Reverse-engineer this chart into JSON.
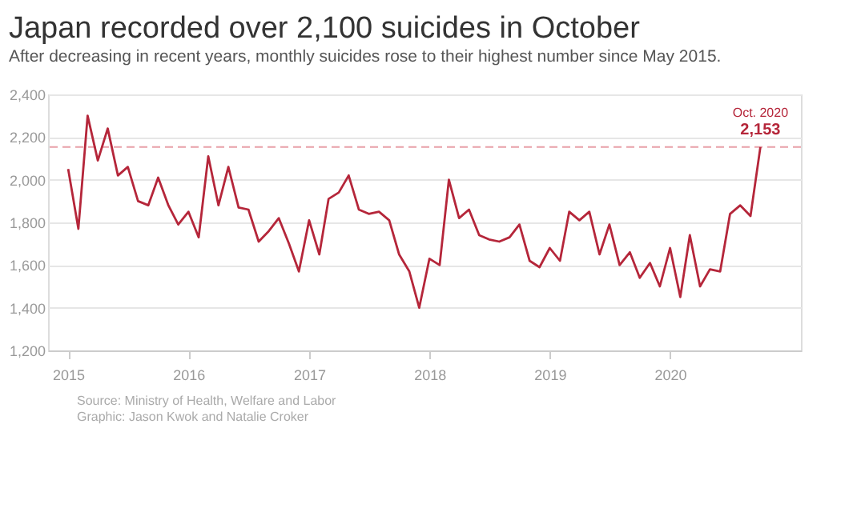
{
  "chart_data": {
    "type": "line",
    "title": "Japan recorded over 2,100 suicides in October",
    "subtitle": "After decreasing in recent years, monthly suicides rose to their highest number since May 2015.",
    "x": [
      "2015-01",
      "2015-02",
      "2015-03",
      "2015-04",
      "2015-05",
      "2015-06",
      "2015-07",
      "2015-08",
      "2015-09",
      "2015-10",
      "2015-11",
      "2015-12",
      "2016-01",
      "2016-02",
      "2016-03",
      "2016-04",
      "2016-05",
      "2016-06",
      "2016-07",
      "2016-08",
      "2016-09",
      "2016-10",
      "2016-11",
      "2016-12",
      "2017-01",
      "2017-02",
      "2017-03",
      "2017-04",
      "2017-05",
      "2017-06",
      "2017-07",
      "2017-08",
      "2017-09",
      "2017-10",
      "2017-11",
      "2017-12",
      "2018-01",
      "2018-02",
      "2018-03",
      "2018-04",
      "2018-05",
      "2018-06",
      "2018-07",
      "2018-08",
      "2018-09",
      "2018-10",
      "2018-11",
      "2018-12",
      "2019-01",
      "2019-02",
      "2019-03",
      "2019-04",
      "2019-05",
      "2019-06",
      "2019-07",
      "2019-08",
      "2019-09",
      "2019-10",
      "2019-11",
      "2019-12",
      "2020-01",
      "2020-02",
      "2020-03",
      "2020-04",
      "2020-05",
      "2020-06",
      "2020-07",
      "2020-08",
      "2020-09",
      "2020-10"
    ],
    "series": [
      {
        "color": "#b5263a",
        "values": [
          2050,
          1770,
          2300,
          2090,
          2240,
          2020,
          2060,
          1900,
          1880,
          2010,
          1880,
          1790,
          1850,
          1730,
          2110,
          1880,
          2060,
          1870,
          1860,
          1710,
          1760,
          1820,
          1700,
          1570,
          1810,
          1650,
          1910,
          1940,
          2020,
          1860,
          1840,
          1850,
          1810,
          1650,
          1570,
          1400,
          1630,
          1600,
          2000,
          1820,
          1860,
          1740,
          1720,
          1710,
          1730,
          1790,
          1620,
          1590,
          1680,
          1620,
          1850,
          1810,
          1850,
          1650,
          1790,
          1600,
          1660,
          1540,
          1610,
          1500,
          1680,
          1450,
          1740,
          1500,
          1580,
          1570,
          1840,
          1880,
          1830,
          2153
        ]
      }
    ],
    "xlim": [
      "2014-11-01",
      "2021-02-01"
    ],
    "xticks": [
      "2015",
      "2016",
      "2017",
      "2018",
      "2019",
      "2020"
    ],
    "ylim": [
      1200,
      2400
    ],
    "yticks": [
      {
        "value": 1200,
        "label": "1,200"
      },
      {
        "value": 1400,
        "label": "1,400"
      },
      {
        "value": 1600,
        "label": "1,600"
      },
      {
        "value": 1800,
        "label": "1,800"
      },
      {
        "value": 2000,
        "label": "2,000"
      },
      {
        "value": 2200,
        "label": "2,200"
      },
      {
        "value": 2400,
        "label": "2,400"
      }
    ],
    "grid": "y",
    "line_style": "solid",
    "ref_lines": [
      {
        "axis": "y",
        "value": 2153,
        "color": "#e8a0a8",
        "line_style": "dashed"
      }
    ],
    "annotations": [
      {
        "text": "Oct. 2020",
        "x": "2020-10",
        "y": 2153
      },
      {
        "text": "2,153",
        "x": "2020-10",
        "y": 2153
      },
      "Source: Ministry of Health, Welfare and Labor",
      "Graphic: Jason Kwok and Natalie Croker"
    ]
  }
}
